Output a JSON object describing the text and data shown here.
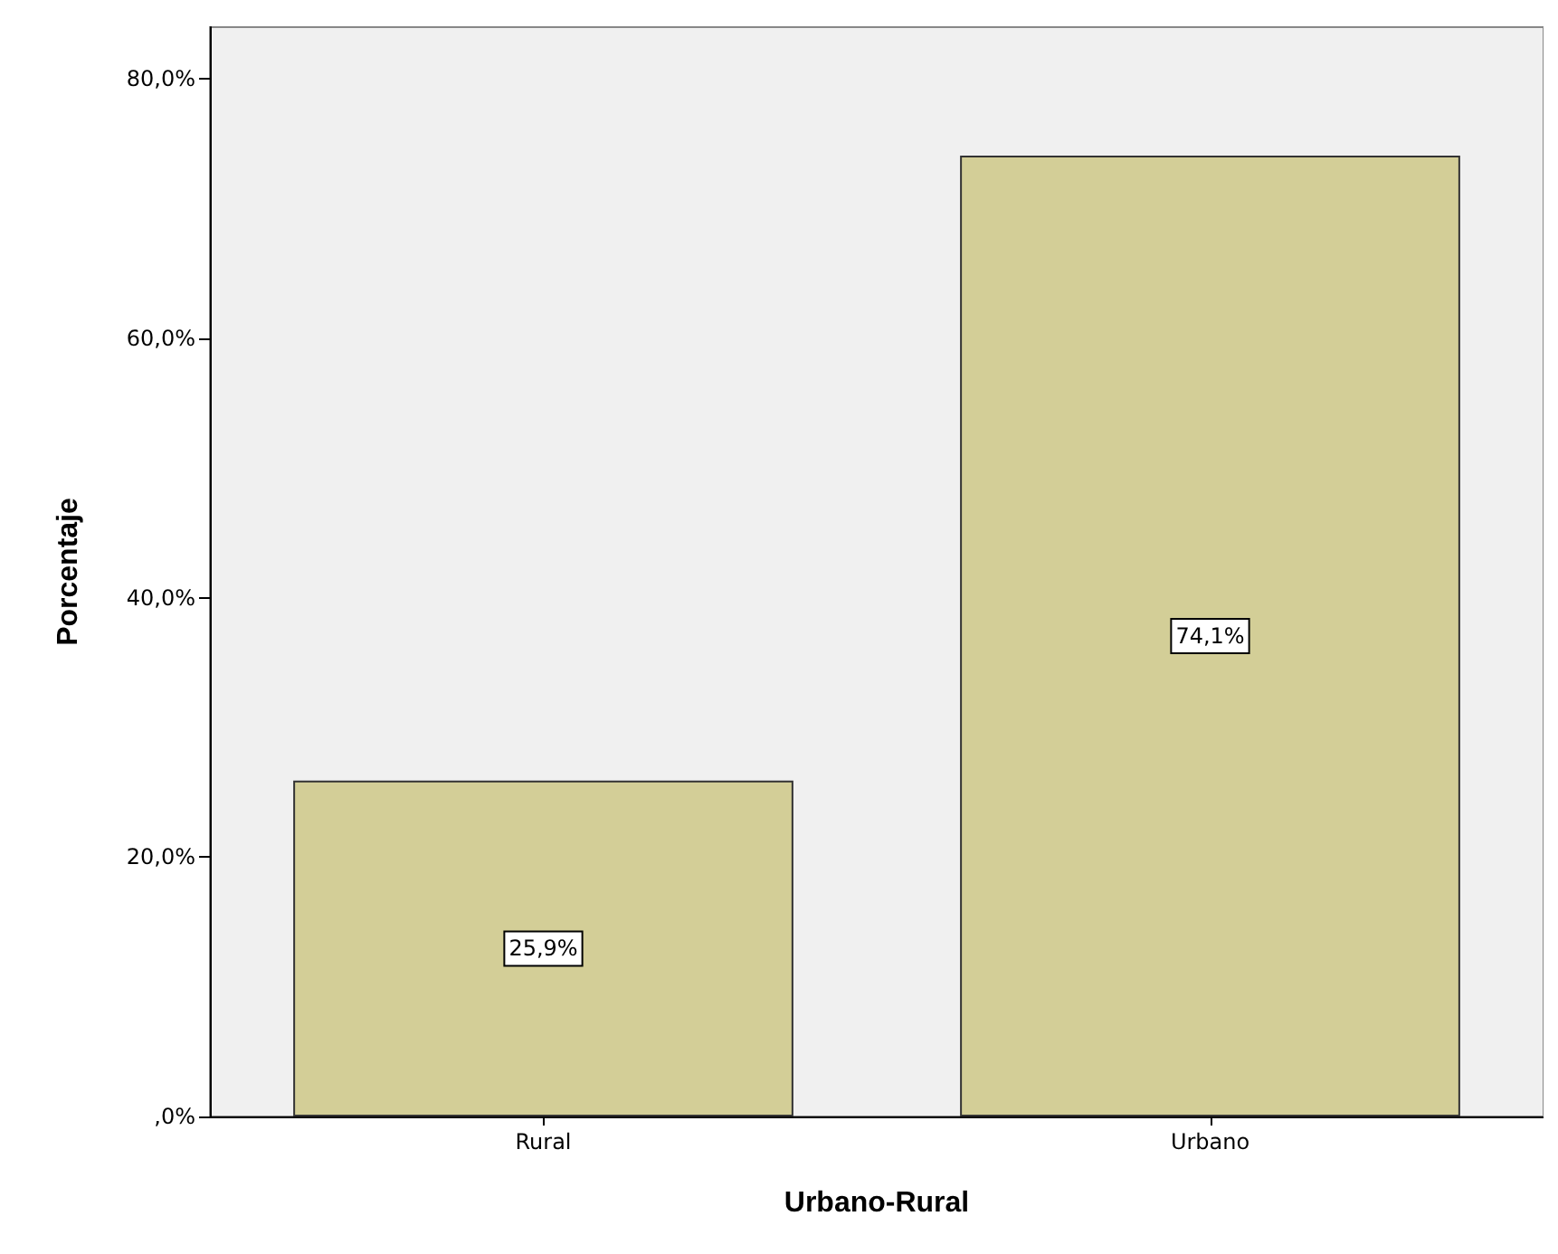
{
  "chart_data": {
    "type": "bar",
    "xlabel": "Urbano-Rural",
    "ylabel": "Porcentaje",
    "categories": [
      "Rural",
      "Urbano"
    ],
    "values": [
      25.9,
      74.1
    ],
    "value_labels": [
      "25,9%",
      "74,1%"
    ],
    "color": "#d3ce97",
    "ylim": [
      0,
      84
    ],
    "yticks": [
      {
        "value": 0,
        "label": ",0%"
      },
      {
        "value": 20,
        "label": "20,0%"
      },
      {
        "value": 40,
        "label": "40,0%"
      },
      {
        "value": 60,
        "label": "60,0%"
      },
      {
        "value": 80,
        "label": "80,0%"
      }
    ],
    "grid": false
  }
}
